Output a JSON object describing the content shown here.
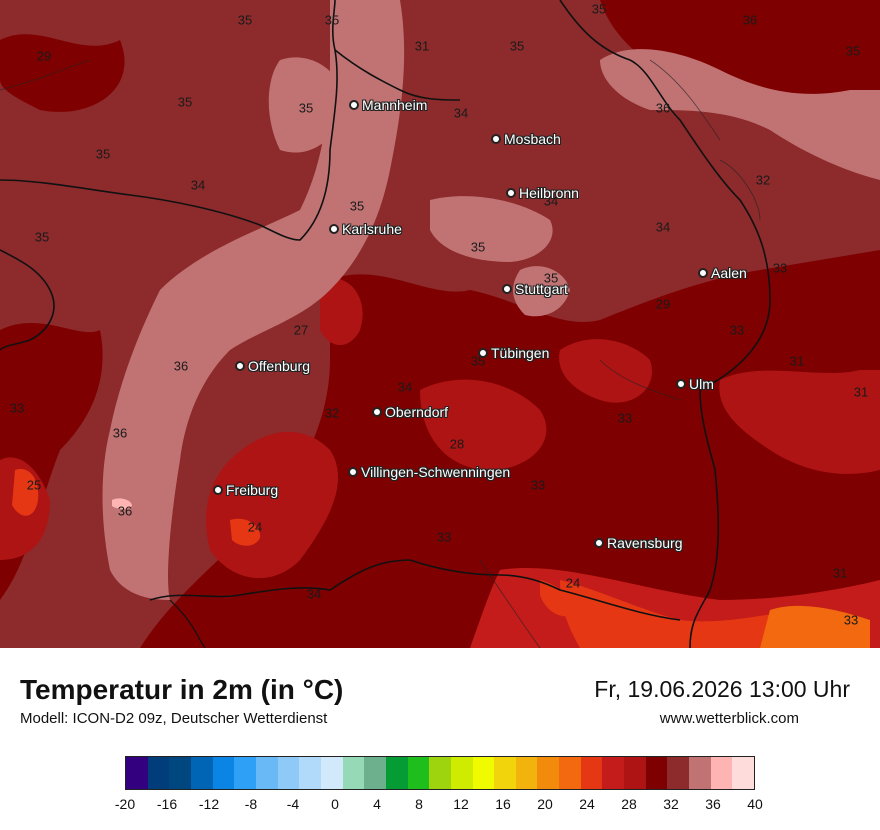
{
  "map": {
    "cities": [
      {
        "name": "Mannheim"
      },
      {
        "name": "Mosbach"
      },
      {
        "name": "Heilbronn"
      },
      {
        "name": "Karlsruhe"
      },
      {
        "name": "Aalen"
      },
      {
        "name": "Stuttgart"
      },
      {
        "name": "Tübingen"
      },
      {
        "name": "Offenburg"
      },
      {
        "name": "Ulm"
      },
      {
        "name": "Oberndorf"
      },
      {
        "name": "Villingen-Schwenningen"
      },
      {
        "name": "Freiburg"
      },
      {
        "name": "Ravensburg"
      }
    ],
    "temperature_labels": [
      "35",
      "35",
      "35",
      "36",
      "35",
      "29",
      "31",
      "35",
      "35",
      "35",
      "34",
      "36",
      "35",
      "34",
      "32",
      "35",
      "35",
      "34",
      "35",
      "35",
      "34",
      "33",
      "35",
      "29",
      "33",
      "27",
      "31",
      "36",
      "31",
      "34",
      "33",
      "32",
      "36",
      "28",
      "33",
      "25",
      "33",
      "36",
      "24",
      "33",
      "34",
      "24",
      "31",
      "33"
    ]
  },
  "footer": {
    "title": "Temperatur in 2m (in °C)",
    "subtitle": "Modell: ICON-D2 09z, Deutscher Wetterdienst",
    "datetime": "Fr, 19.06.2026 13:00 Uhr",
    "website": "www.wetterblick.com"
  },
  "legend": {
    "colors": [
      "#33007f",
      "#003d7a",
      "#00467f",
      "#0065b5",
      "#0a85e6",
      "#2ea0f5",
      "#6ab9f7",
      "#8ec9f8",
      "#b1d9f9",
      "#d2e9fb",
      "#96d9b7",
      "#6cb08e",
      "#059c35",
      "#1ebf1c",
      "#9ed40d",
      "#cfec00",
      "#f0fb00",
      "#f1d40b",
      "#f2b40c",
      "#f28a0c",
      "#f2690f",
      "#e63714",
      "#c41c1b",
      "#ae1414",
      "#7f0000",
      "#8c2a2c",
      "#c17374",
      "#ffb4b4",
      "#ffdcdc"
    ],
    "ticks": [
      "-20",
      "-16",
      "-12",
      "-8",
      "-4",
      "0",
      "4",
      "8",
      "12",
      "16",
      "20",
      "24",
      "28",
      "32",
      "36",
      "40"
    ]
  }
}
